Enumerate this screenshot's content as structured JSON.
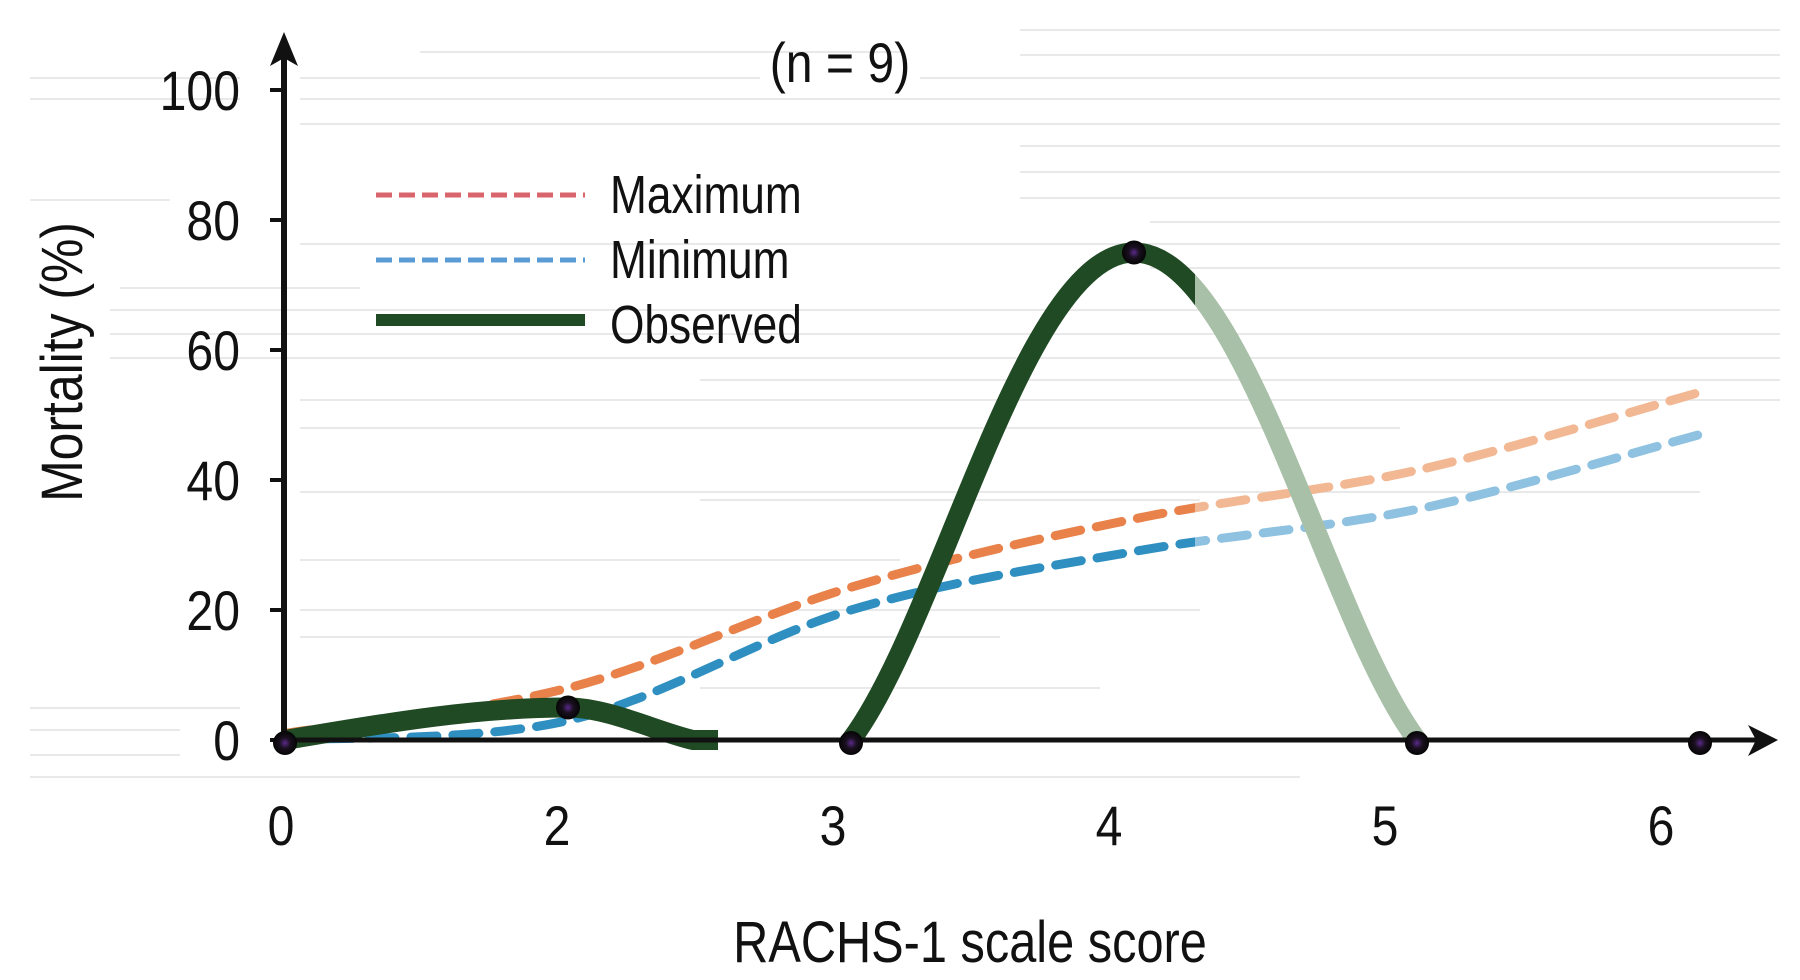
{
  "chart_data": {
    "type": "line",
    "annotation": "(n = 9)",
    "xlabel": "RACHS-1 scale score",
    "ylabel": "Mortality (%)",
    "x": [
      0,
      2,
      3,
      4,
      5,
      6
    ],
    "x_tick_labels": [
      "0",
      "2",
      "3",
      "4",
      "5",
      "6"
    ],
    "y_ticks": [
      0,
      20,
      40,
      60,
      80,
      100
    ],
    "y_tick_labels": [
      "0",
      "20",
      "40",
      "60",
      "80",
      "100"
    ],
    "ylim": [
      0,
      100
    ],
    "grid": false,
    "legend_position": "top-left",
    "series": [
      {
        "name": "Maximum",
        "style": "dashed",
        "color": "#e8814a",
        "legend_color": "#d9646b",
        "values": [
          1,
          8,
          23.5,
          34,
          41.5,
          53.5
        ]
      },
      {
        "name": "Minimum",
        "style": "dashed",
        "color": "#2e8fc0",
        "legend_color": "#5b9bd5",
        "values": [
          0,
          3,
          20,
          29,
          35.5,
          47
        ]
      },
      {
        "name": "Observed",
        "style": "solid",
        "color": "#1f4a24",
        "values": [
          0,
          5,
          0,
          75,
          0,
          0
        ]
      }
    ],
    "faded_after_x": 4.3,
    "faded_colors": {
      "Maximum": "#f2b894",
      "Minimum": "#8fc2e0",
      "Observed": "#a8c0a8"
    },
    "marker_color": "#111111"
  }
}
